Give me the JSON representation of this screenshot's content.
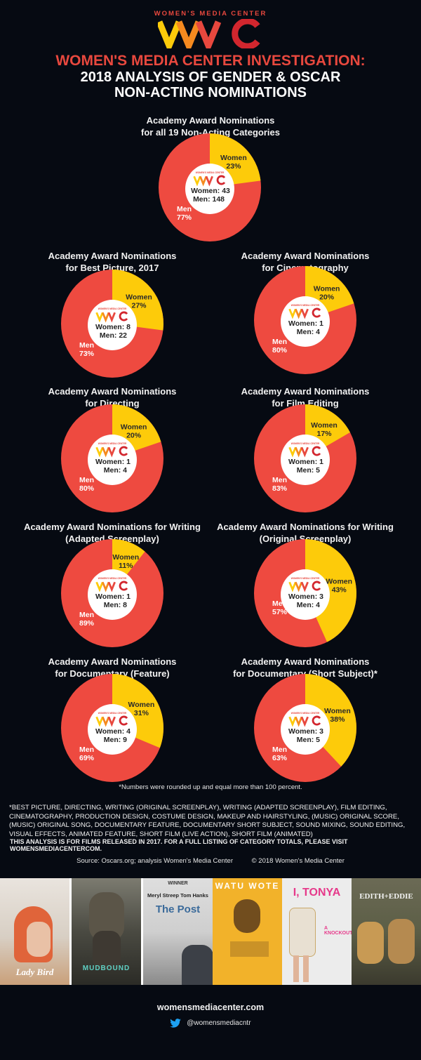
{
  "header": {
    "org_name": "WOMEN'S MEDIA CENTER",
    "logo_text": "WMC",
    "headline_line1": "WOMEN'S MEDIA CENTER INVESTIGATION:",
    "headline_line2": "2018 ANALYSIS OF GENDER & OSCAR",
    "headline_line3": "NON-ACTING NOMINATIONS"
  },
  "colors": {
    "background": "#060a12",
    "men": "#ee4a40",
    "women": "#fdcb0a",
    "accent_red": "#e8483e",
    "logo_yellow": "#fdcb0a",
    "logo_orange": "#f58a1f",
    "logo_red": "#e8483e",
    "logo_darkred": "#d2262e",
    "twitter_blue": "#1da1f2"
  },
  "pies": [
    {
      "id": "all",
      "title_line1": "Academy Award Nominations",
      "title_line2": "for all 19 Non-Acting Categories",
      "women_label": "Women",
      "women_pct_text": "23%",
      "men_label": "Men",
      "men_pct_text": "77%",
      "center_women": "Women: 43",
      "center_men": "Men: 148"
    },
    {
      "id": "best-picture",
      "title_line1": "Academy Award Nominations",
      "title_line2": "for Best Picture, 2017",
      "women_label": "Women",
      "women_pct_text": "27%",
      "men_label": "Men",
      "men_pct_text": "73%",
      "center_women": "Women: 8",
      "center_men": "Men: 22"
    },
    {
      "id": "cinematography",
      "title_line1": "Academy Award Nominations",
      "title_line2": "for Cinematography",
      "women_label": "Women",
      "women_pct_text": "20%",
      "men_label": "Men",
      "men_pct_text": "80%",
      "center_women": "Women: 1",
      "center_men": "Men: 4"
    },
    {
      "id": "directing",
      "title_line1": "Academy Award Nominations",
      "title_line2": "for Directing",
      "women_label": "Women",
      "women_pct_text": "20%",
      "men_label": "Men",
      "men_pct_text": "80%",
      "center_women": "Women: 1",
      "center_men": "Men: 4"
    },
    {
      "id": "film-editing",
      "title_line1": "Academy Award Nominations",
      "title_line2": "for Film Editing",
      "women_label": "Women",
      "women_pct_text": "17%",
      "men_label": "Men",
      "men_pct_text": "83%",
      "center_women": "Women: 1",
      "center_men": "Men: 5"
    },
    {
      "id": "writing-adapted",
      "title_line1": "Academy Award Nominations for Writing",
      "title_line2": "(Adapted Screenplay)",
      "women_label": "Women",
      "women_pct_text": "11%",
      "men_label": "Men",
      "men_pct_text": "89%",
      "center_women": "Women: 1",
      "center_men": "Men: 8"
    },
    {
      "id": "writing-original",
      "title_line1": "Academy Award Nominations for Writing",
      "title_line2": "(Original Screenplay)",
      "women_label": "Women",
      "women_pct_text": "43%",
      "men_label": "Men",
      "men_pct_text": "57%",
      "center_women": "Women: 3",
      "center_men": "Men: 4"
    },
    {
      "id": "documentary-feature",
      "title_line1": "Academy Award Nominations",
      "title_line2": "for Documentary (Feature)",
      "women_label": "Women",
      "women_pct_text": "31%",
      "men_label": "Men",
      "men_pct_text": "69%",
      "center_women": "Women: 4",
      "center_men": "Men: 9"
    },
    {
      "id": "documentary-short",
      "title_line1": "Academy Award Nominations",
      "title_line2": "for Documentary (Short Subject)*",
      "women_label": "Women",
      "women_pct_text": "38%",
      "men_label": "Men",
      "men_pct_text": "63%",
      "center_women": "Women: 3",
      "center_men": "Men: 5"
    }
  ],
  "footnote": "*Numbers were rounded up and equal more than 100 percent.",
  "categories_note": "*BEST PICTURE, DIRECTING, WRITING (ORIGINAL SCREENPLAY), WRITING (ADAPTED SCREENPLAY), FILM EDITING, CINEMATOGRAPHY, PRODUCTION DESIGN, COSTUME DESIGN, MAKEUP AND HAIRSTYLING, (MUSIC) ORIGINAL SCORE, (MUSIC) ORIGINAL SONG, DOCUMENTARY FEATURE, DOCUMENTARY SHORT SUBJECT, SOUND MIXING, SOUND EDITING, VISUAL EFFECTS, ANIMATED FEATURE, SHORT FILM (LIVE ACTION), SHORT FILM (ANIMATED)",
  "analysis_note": "THIS ANALYSIS IS FOR FILMS RELEASED IN 2017. FOR A FULL LISTING OF CATEGORY TOTALS, PLEASE VISIT WOMENSMEDIACENTERCOM.",
  "source": {
    "text": "Source: Oscars.org; analysis Women's Media Center",
    "copyright": "© 2018 Women's Media Center"
  },
  "posters": [
    {
      "title": "Lady Bird",
      "bg": "#d9cfc4",
      "fg": "#ffffff"
    },
    {
      "title": "MUDBOUND",
      "bg": "#4a4a42",
      "fg": "#5fd0c4"
    },
    {
      "title": "The Post",
      "bg": "#cfcfcf",
      "fg": "#3a6a9a",
      "top_text": "WINNER",
      "credits": "Meryl Streep    Tom Hanks"
    },
    {
      "title": "WATU WOTE",
      "bg": "#f2b22a",
      "fg": "#ffffff"
    },
    {
      "title": "I, TONYA",
      "bg": "#ececec",
      "fg": "#e6398a",
      "tagline": "A KNOCKOUT!"
    },
    {
      "title": "EDITH+EDDIE",
      "bg": "#5c5e46",
      "fg": "#f2f2f2"
    }
  ],
  "footer": {
    "website": "womensmediacenter.com",
    "twitter_handle": "@womensmediacntr"
  },
  "chart_data": [
    {
      "type": "pie",
      "title": "Academy Award Nominations for all 19 Non-Acting Categories",
      "categories": [
        "Women",
        "Men"
      ],
      "values": [
        23,
        77
      ],
      "counts": [
        43,
        148
      ]
    },
    {
      "type": "pie",
      "title": "Academy Award Nominations for Best Picture, 2017",
      "categories": [
        "Women",
        "Men"
      ],
      "values": [
        27,
        73
      ],
      "counts": [
        8,
        22
      ]
    },
    {
      "type": "pie",
      "title": "Academy Award Nominations for Cinematography",
      "categories": [
        "Women",
        "Men"
      ],
      "values": [
        20,
        80
      ],
      "counts": [
        1,
        4
      ]
    },
    {
      "type": "pie",
      "title": "Academy Award Nominations for Directing",
      "categories": [
        "Women",
        "Men"
      ],
      "values": [
        20,
        80
      ],
      "counts": [
        1,
        4
      ]
    },
    {
      "type": "pie",
      "title": "Academy Award Nominations for Film Editing",
      "categories": [
        "Women",
        "Men"
      ],
      "values": [
        17,
        83
      ],
      "counts": [
        1,
        5
      ]
    },
    {
      "type": "pie",
      "title": "Academy Award Nominations for Writing (Adapted Screenplay)",
      "categories": [
        "Women",
        "Men"
      ],
      "values": [
        11,
        89
      ],
      "counts": [
        1,
        8
      ]
    },
    {
      "type": "pie",
      "title": "Academy Award Nominations for Writing (Original Screenplay)",
      "categories": [
        "Women",
        "Men"
      ],
      "values": [
        43,
        57
      ],
      "counts": [
        3,
        4
      ]
    },
    {
      "type": "pie",
      "title": "Academy Award Nominations for Documentary (Feature)",
      "categories": [
        "Women",
        "Men"
      ],
      "values": [
        31,
        69
      ],
      "counts": [
        4,
        9
      ]
    },
    {
      "type": "pie",
      "title": "Academy Award Nominations for Documentary (Short Subject)*",
      "categories": [
        "Women",
        "Men"
      ],
      "values": [
        38,
        63
      ],
      "counts": [
        3,
        5
      ]
    }
  ]
}
